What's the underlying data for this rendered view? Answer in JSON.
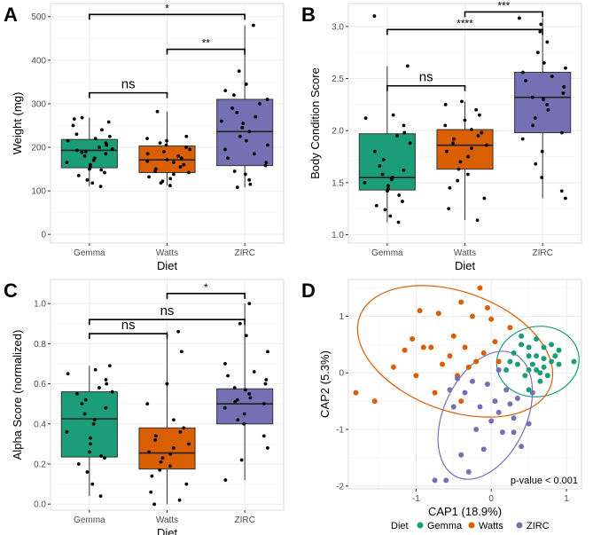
{
  "colors": {
    "Gemma": "#1b9e77",
    "Watts": "#d95f02",
    "ZIRC": "#7570b3"
  },
  "chart_data": [
    {
      "panel": "A",
      "type": "box",
      "categories": [
        "Gemma",
        "Watts",
        "ZIRC"
      ],
      "xlabel": "Diet",
      "ylabel": "Weight (mg)",
      "ylim": [
        -20,
        530
      ],
      "yticks": [
        0,
        100,
        200,
        300,
        400,
        500
      ],
      "tick_labels": [
        "0",
        "100",
        "200",
        "300",
        "400",
        "500"
      ],
      "grid": true,
      "boxes": [
        {
          "category": "Gemma",
          "q1": 153,
          "median": 193,
          "q3": 218,
          "min": 110,
          "max": 268
        },
        {
          "category": "Watts",
          "q1": 142,
          "median": 171,
          "q3": 203,
          "min": 112,
          "max": 282
        },
        {
          "category": "ZIRC",
          "q1": 158,
          "median": 236,
          "q3": 310,
          "min": 108,
          "max": 480
        }
      ],
      "points": {
        "Gemma": [
          110,
          118,
          125,
          135,
          142,
          148,
          150,
          155,
          160,
          165,
          170,
          175,
          180,
          185,
          188,
          190,
          193,
          196,
          200,
          205,
          210,
          215,
          220,
          225,
          230,
          240,
          250,
          258,
          265,
          268
        ],
        "Watts": [
          112,
          118,
          122,
          128,
          132,
          138,
          142,
          145,
          150,
          155,
          160,
          165,
          168,
          171,
          175,
          180,
          185,
          190,
          195,
          200,
          205,
          210,
          215,
          220,
          225,
          282
        ],
        "ZIRC": [
          108,
          115,
          125,
          138,
          145,
          158,
          165,
          175,
          185,
          195,
          205,
          215,
          225,
          236,
          245,
          255,
          260,
          270,
          280,
          290,
          300,
          310,
          320,
          330,
          345,
          375,
          480
        ]
      },
      "comparisons": [
        {
          "from": "Gemma",
          "to": "Watts",
          "label": "ns",
          "y": 325
        },
        {
          "from": "Watts",
          "to": "ZIRC",
          "label": "**",
          "y": 425
        },
        {
          "from": "Gemma",
          "to": "ZIRC",
          "label": "*",
          "y": 505
        }
      ]
    },
    {
      "panel": "B",
      "type": "box",
      "categories": [
        "Gemma",
        "Watts",
        "ZIRC"
      ],
      "xlabel": "Diet",
      "ylabel": "Body Condition Score",
      "ylim": [
        0.92,
        3.22
      ],
      "yticks": [
        1.0,
        1.5,
        2.0,
        2.5,
        3.0
      ],
      "tick_labels": [
        "1.0",
        "1.5",
        "2.0",
        "2.5",
        "3.0"
      ],
      "grid": true,
      "boxes": [
        {
          "category": "Gemma",
          "q1": 1.43,
          "median": 1.55,
          "q3": 1.97,
          "min": 1.12,
          "max": 2.62
        },
        {
          "category": "Watts",
          "q1": 1.63,
          "median": 1.86,
          "q3": 2.01,
          "min": 1.14,
          "max": 2.28
        },
        {
          "category": "ZIRC",
          "q1": 1.98,
          "median": 2.32,
          "q3": 2.56,
          "min": 1.35,
          "max": 3.08
        }
      ],
      "points": {
        "Gemma": [
          1.12,
          1.18,
          1.24,
          1.28,
          1.32,
          1.38,
          1.42,
          1.44,
          1.47,
          1.5,
          1.53,
          1.55,
          1.58,
          1.62,
          1.66,
          1.72,
          1.8,
          1.88,
          1.95,
          1.98,
          2.05,
          2.12,
          2.15,
          2.62,
          3.1
        ],
        "Watts": [
          1.14,
          1.25,
          1.35,
          1.45,
          1.52,
          1.58,
          1.63,
          1.7,
          1.75,
          1.8,
          1.83,
          1.86,
          1.88,
          1.92,
          1.95,
          1.98,
          2.01,
          2.05,
          2.1,
          2.15,
          2.2,
          2.25,
          2.28
        ],
        "ZIRC": [
          1.35,
          1.42,
          1.55,
          1.68,
          1.8,
          1.92,
          1.98,
          2.05,
          2.12,
          2.2,
          2.25,
          2.3,
          2.32,
          2.36,
          2.42,
          2.48,
          2.52,
          2.56,
          2.6,
          2.65,
          2.75,
          2.85,
          2.95,
          3.02,
          3.08
        ]
      },
      "comparisons": [
        {
          "from": "Gemma",
          "to": "Watts",
          "label": "ns",
          "y": 2.43
        },
        {
          "from": "Gemma",
          "to": "ZIRC",
          "label": "****",
          "y": 2.97
        },
        {
          "from": "Watts",
          "to": "ZIRC",
          "label": "***",
          "y": 3.14
        }
      ]
    },
    {
      "panel": "C",
      "type": "box",
      "categories": [
        "Gemma",
        "Watts",
        "ZIRC"
      ],
      "xlabel": "Diet",
      "ylabel": "Alpha Score (normalized)",
      "ylim": [
        -0.03,
        1.12
      ],
      "yticks": [
        0.0,
        0.2,
        0.4,
        0.6,
        0.8,
        1.0
      ],
      "tick_labels": [
        "0.0",
        "0.2",
        "0.4",
        "0.6",
        "0.8",
        "1.0"
      ],
      "grid": true,
      "boxes": [
        {
          "category": "Gemma",
          "q1": 0.235,
          "median": 0.425,
          "q3": 0.56,
          "min": 0.04,
          "max": 0.69
        },
        {
          "category": "Watts",
          "q1": 0.175,
          "median": 0.255,
          "q3": 0.38,
          "min": 0.0,
          "max": 0.86
        },
        {
          "category": "ZIRC",
          "q1": 0.4,
          "median": 0.5,
          "q3": 0.575,
          "min": 0.12,
          "max": 1.0
        }
      ],
      "points": {
        "Gemma": [
          0.04,
          0.1,
          0.16,
          0.2,
          0.23,
          0.24,
          0.26,
          0.3,
          0.33,
          0.36,
          0.4,
          0.42,
          0.45,
          0.48,
          0.5,
          0.52,
          0.55,
          0.56,
          0.58,
          0.6,
          0.62,
          0.65,
          0.67,
          0.69
        ],
        "Watts": [
          0.0,
          0.02,
          0.06,
          0.1,
          0.14,
          0.17,
          0.19,
          0.21,
          0.23,
          0.25,
          0.26,
          0.28,
          0.3,
          0.32,
          0.34,
          0.36,
          0.38,
          0.42,
          0.5,
          0.6,
          0.76,
          0.86
        ],
        "ZIRC": [
          0.12,
          0.22,
          0.28,
          0.34,
          0.4,
          0.42,
          0.45,
          0.48,
          0.5,
          0.51,
          0.52,
          0.53,
          0.55,
          0.57,
          0.58,
          0.6,
          0.62,
          0.64,
          0.66,
          0.7,
          0.76,
          0.84,
          0.9,
          1.0
        ]
      },
      "comparisons": [
        {
          "from": "Gemma",
          "to": "Watts",
          "label": "ns",
          "y": 0.85
        },
        {
          "from": "Gemma",
          "to": "ZIRC",
          "label": "ns",
          "y": 0.92
        },
        {
          "from": "Watts",
          "to": "ZIRC",
          "label": "*",
          "y": 1.05
        }
      ]
    },
    {
      "panel": "D",
      "type": "scatter",
      "xlabel": "CAP1 (18.9%)",
      "ylabel": "CAP2 (5.3%)",
      "xlim": [
        -1.9,
        1.2
      ],
      "ylim": [
        -2.05,
        1.65
      ],
      "xticks": [
        -1,
        0,
        1
      ],
      "xtick_labels": [
        "-1",
        "0",
        "1"
      ],
      "yticks": [
        -2,
        -1,
        0,
        1
      ],
      "ytick_labels": [
        "-2",
        "-1",
        "0",
        "1"
      ],
      "grid": true,
      "annotation": "p-value < 0.001",
      "legend": {
        "title": "Diet",
        "placement": "bottom",
        "entries": [
          "Gemma",
          "Watts",
          "ZIRC"
        ]
      },
      "series": [
        {
          "name": "Gemma",
          "points": [
            [
              0.4,
              0.5
            ],
            [
              0.5,
              0.45
            ],
            [
              0.6,
              0.6
            ],
            [
              0.7,
              0.45
            ],
            [
              0.8,
              0.5
            ],
            [
              0.9,
              0.4
            ],
            [
              1.1,
              0.2
            ],
            [
              0.5,
              0.3
            ],
            [
              0.6,
              0.3
            ],
            [
              0.7,
              0.25
            ],
            [
              0.8,
              0.2
            ],
            [
              0.85,
              0.3
            ],
            [
              0.9,
              0.15
            ],
            [
              0.55,
              0.15
            ],
            [
              0.6,
              0.05
            ],
            [
              0.7,
              0.1
            ],
            [
              0.75,
              -0.05
            ],
            [
              0.65,
              -0.15
            ],
            [
              0.45,
              -0.05
            ],
            [
              0.35,
              0.15
            ],
            [
              0.3,
              0.35
            ],
            [
              0.25,
              0.2
            ],
            [
              0.2,
              0.05
            ],
            [
              0.5,
              -0.3
            ],
            [
              0.4,
              0.65
            ],
            [
              0.65,
              0.0
            ],
            [
              0.5,
              0.05
            ]
          ],
          "ellipse": {
            "cx": 0.62,
            "cy": 0.2,
            "rx": 0.55,
            "ry": 0.62,
            "angle": -10
          }
        },
        {
          "name": "Watts",
          "points": [
            [
              -1.8,
              -0.35
            ],
            [
              -1.55,
              -0.5
            ],
            [
              -1.3,
              0.1
            ],
            [
              -1.15,
              0.4
            ],
            [
              -1.05,
              0.6
            ],
            [
              -1.0,
              -0.05
            ],
            [
              -0.9,
              0.45
            ],
            [
              -0.8,
              0.45
            ],
            [
              -0.7,
              1.05
            ],
            [
              -0.65,
              0.15
            ],
            [
              -0.55,
              0.3
            ],
            [
              -0.5,
              0.65
            ],
            [
              -0.45,
              -0.05
            ],
            [
              -0.4,
              1.25
            ],
            [
              -0.35,
              0.45
            ],
            [
              -0.3,
              0.1
            ],
            [
              -0.25,
              1.0
            ],
            [
              -0.2,
              0.2
            ],
            [
              -0.15,
              1.5
            ],
            [
              -0.1,
              0.35
            ],
            [
              -0.05,
              1.15
            ],
            [
              0.05,
              0.55
            ],
            [
              0.1,
              0.2
            ],
            [
              0.25,
              0.8
            ],
            [
              -0.95,
              1.1
            ],
            [
              -0.75,
              -0.35
            ],
            [
              -0.4,
              -0.5
            ],
            [
              0.0,
              0.95
            ]
          ],
          "ellipse": {
            "cx": -0.48,
            "cy": 0.38,
            "rx": 1.35,
            "ry": 1.05,
            "angle": 20
          }
        },
        {
          "name": "ZIRC",
          "points": [
            [
              -0.75,
              -1.9
            ],
            [
              -0.6,
              -1.9
            ],
            [
              -0.4,
              -1.45
            ],
            [
              -0.3,
              -1.75
            ],
            [
              -0.2,
              -1.0
            ],
            [
              -0.15,
              -0.6
            ],
            [
              -0.1,
              -1.35
            ],
            [
              -0.05,
              -0.2
            ],
            [
              0.0,
              -0.85
            ],
            [
              0.05,
              -0.5
            ],
            [
              0.1,
              -0.7
            ],
            [
              0.15,
              -1.05
            ],
            [
              0.2,
              -0.3
            ],
            [
              0.25,
              -0.55
            ],
            [
              0.3,
              -0.8
            ],
            [
              0.35,
              -0.45
            ],
            [
              -0.35,
              -0.35
            ],
            [
              -0.45,
              -0.1
            ],
            [
              -0.5,
              -0.6
            ],
            [
              -0.25,
              -0.15
            ],
            [
              0.1,
              0.05
            ],
            [
              0.4,
              -1.3
            ],
            [
              0.5,
              -0.9
            ],
            [
              0.55,
              -0.35
            ],
            [
              -0.55,
              -0.3
            ],
            [
              0.3,
              -1.05
            ]
          ],
          "ellipse": {
            "cx": -0.08,
            "cy": -0.75,
            "rx": 0.55,
            "ry": 1.2,
            "angle": 25
          }
        }
      ]
    }
  ]
}
